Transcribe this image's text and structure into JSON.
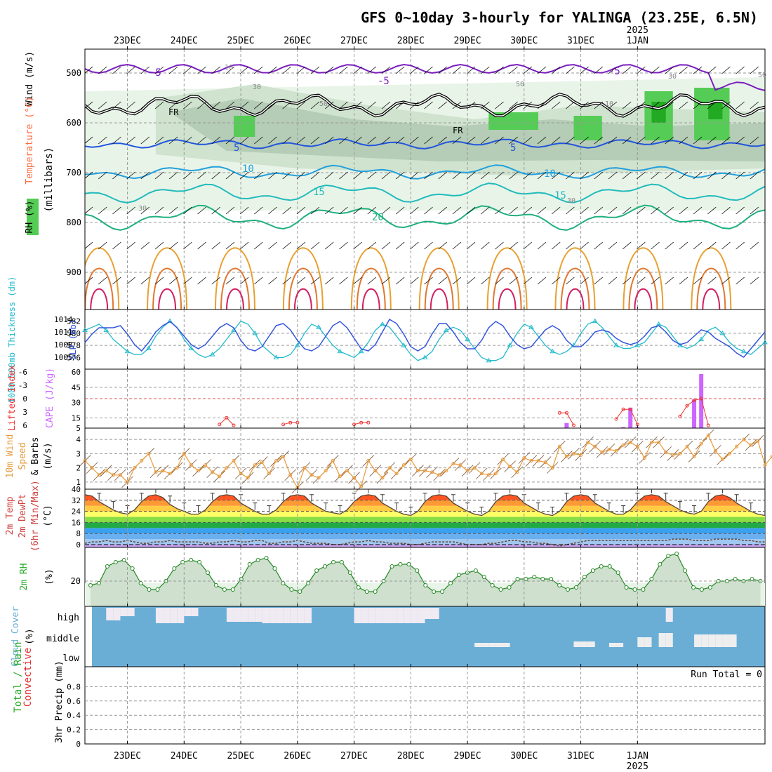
{
  "title": "GFS 0~10day 3-hourly for YALINGA (23.25E, 6.5N)",
  "dates": [
    "23DEC",
    "24DEC",
    "25DEC",
    "26DEC",
    "27DEC",
    "28DEC",
    "29DEC",
    "30DEC",
    "31DEC",
    "1JAN"
  ],
  "year_label": "2025",
  "colors": {
    "wind_barb": "#000000",
    "tmp_label": "#ff6a3c",
    "wind_label": "#000000",
    "rh_label": "#22aa22",
    "thick": "#22bbcc",
    "slp": "#3355dd",
    "cape": "#cc66ff",
    "lifted": "#ee3333",
    "wind10": "#e89a3c",
    "cloud": "#6aaed6",
    "temp_label": "#d04040"
  },
  "panels": {
    "upper": {
      "ylabel": "(millibars)",
      "side_labels": [
        "Wind (m/s)",
        "Temperature (°C)",
        "RH (%)"
      ],
      "y_ticks": [
        500,
        600,
        700,
        800,
        900
      ],
      "contour_labels": {
        "rh": [
          "10",
          "30",
          "50",
          "50",
          "50",
          "30",
          "30",
          "10",
          "30"
        ],
        "temp": [
          "-5",
          "-5",
          "-5",
          "5",
          "5",
          "10",
          "10",
          "15",
          "15",
          "20"
        ],
        "freezing": [
          "FR",
          "FR"
        ]
      }
    },
    "thickness_slp": {
      "left_label": "1000-500mb Thickness (dm)",
      "right_label": "SLP (mb)",
      "left_ticks": [
        "582",
        "580",
        "578",
        "576"
      ],
      "right_ticks": [
        "1014",
        "1011",
        "1008",
        "1005"
      ]
    },
    "cape_li": {
      "left_label": "Lifted Index",
      "right_label": "CAPE (J/kg)",
      "left_ticks": [
        "-6",
        "-3",
        "0",
        "3",
        "6"
      ],
      "right_ticks": [
        "60",
        "45",
        "30",
        "15",
        "5"
      ]
    },
    "wind10": {
      "labels": [
        "10m Wind",
        "Speed",
        "& Barbs",
        "(m/s)"
      ],
      "y_ticks": [
        "4",
        "3",
        "2",
        "1"
      ]
    },
    "temp2m": {
      "labels": [
        "2m Temp",
        "2m DewPt",
        "(6hr Min/Max)",
        "(°C)"
      ],
      "y_ticks": [
        "40",
        "32",
        "24",
        "16",
        "8",
        "0"
      ]
    },
    "rh2m": {
      "labels": [
        "2m RH",
        "(%)"
      ],
      "y_ticks": [
        "20"
      ]
    },
    "cloud": {
      "labels": [
        "Cloud Cover",
        "(%)"
      ],
      "levels": [
        "high",
        "middle",
        "low"
      ]
    },
    "precip": {
      "labels": [
        "Total / Rain",
        "Convective",
        "3hr Precip (mm)"
      ],
      "y_ticks": [
        "0.8",
        "0.6",
        "0.4",
        "0.2",
        "0"
      ],
      "run_total": "Run Total = 0"
    }
  },
  "chart_data": [
    {
      "type": "line",
      "title": "1000-500mb Thickness (dm) / SLP (mb)",
      "x_unit": "forecast step (3-hourly)",
      "series": [
        {
          "name": "1000-500mb Thickness (dm)",
          "axis": "left",
          "ylim": [
            575,
            583
          ],
          "values": [
            580.5,
            581,
            581.5,
            580.5,
            579,
            578,
            577,
            576.5,
            576.5,
            577.5,
            579.5,
            581,
            582,
            581,
            579,
            577.5,
            576.5,
            576,
            576.5,
            577.5,
            579,
            580.5,
            582,
            581.5,
            580,
            578,
            577,
            576,
            576,
            576.5,
            578,
            580,
            581.5,
            581,
            579.5,
            578,
            577,
            576.5,
            576,
            577,
            578.5,
            580.5,
            581.5,
            581,
            579.5,
            578,
            576.5,
            575.5,
            576,
            577,
            579,
            580.5,
            581,
            580.5,
            579,
            577.5,
            576,
            575.5,
            575.5,
            576,
            578,
            580,
            581.5,
            581,
            579.5,
            578,
            577,
            576.5,
            577,
            578,
            580,
            581.5,
            582,
            581,
            579.5,
            578,
            577.5,
            577.5,
            578,
            578.5,
            580,
            581.5,
            581,
            579.5,
            578,
            577.5,
            578,
            579,
            580.5,
            581,
            580,
            578.5,
            577.5,
            577,
            576.5,
            577.5,
            578.5
          ]
        },
        {
          "name": "SLP (mb)",
          "axis": "right",
          "ylim": [
            1003.5,
            1015
          ],
          "values": [
            1008.5,
            1010.5,
            1012,
            1012,
            1012,
            1012.5,
            1010.5,
            1008,
            1006.5,
            1008.5,
            1011,
            1012.5,
            1013.5,
            1012,
            1010,
            1008,
            1007,
            1008,
            1010,
            1012,
            1013,
            1012,
            1009,
            1007,
            1006.5,
            1007.5,
            1010,
            1012.5,
            1013,
            1011.5,
            1009,
            1007,
            1006.5,
            1007.5,
            1010,
            1012.5,
            1013.5,
            1012,
            1009.5,
            1007,
            1006.5,
            1008,
            1011,
            1014,
            1013,
            1010.5,
            1007.5,
            1006.5,
            1007.5,
            1010.5,
            1013,
            1013,
            1011,
            1008.5,
            1007,
            1007,
            1009,
            1012,
            1013.5,
            1012.5,
            1010,
            1008,
            1007,
            1007.5,
            1009.5,
            1011.5,
            1012.5,
            1011.5,
            1009,
            1007.5,
            1007.5,
            1009,
            1011,
            1011.5,
            1011,
            1009.5,
            1008.5,
            1008,
            1008.5,
            1010,
            1012,
            1012.5,
            1011,
            1009,
            1008,
            1008.5,
            1010,
            1011.5,
            1011,
            1009.5,
            1008.5,
            1007.5,
            1006,
            1005,
            1007,
            1009,
            1011
          ]
        }
      ]
    },
    {
      "type": "bar",
      "title": "CAPE (J/kg) / Lifted Index",
      "x_unit": "forecast step (3-hourly)",
      "ylim": [
        5,
        60
      ],
      "bars": [
        {
          "x": 68,
          "value": 10
        },
        {
          "x": 76,
          "value": 6
        },
        {
          "x": 77,
          "value": 25
        },
        {
          "x": 78,
          "value": 6
        },
        {
          "x": 86,
          "value": 33
        },
        {
          "x": 87,
          "value": 58
        }
      ],
      "lifted_index_segments": [
        [
          [
            19,
            5.8
          ],
          [
            20,
            4.3
          ],
          [
            21,
            6
          ]
        ],
        [
          [
            28,
            5.8
          ],
          [
            29,
            5.4
          ],
          [
            30,
            5.4
          ]
        ],
        [
          [
            38,
            5.8
          ],
          [
            39,
            5.4
          ],
          [
            40,
            5.4
          ]
        ],
        [
          [
            67,
            3.2
          ],
          [
            68,
            3.2
          ],
          [
            69,
            6
          ]
        ],
        [
          [
            75,
            4.6
          ],
          [
            76,
            2.4
          ],
          [
            77,
            2.4
          ],
          [
            78,
            5.8
          ]
        ],
        [
          [
            84,
            4
          ],
          [
            85,
            1.6
          ],
          [
            86,
            0.4
          ],
          [
            87,
            0
          ],
          [
            88,
            6
          ]
        ]
      ]
    },
    {
      "type": "line",
      "title": "10m Wind Speed (m/s)",
      "x_unit": "forecast step (3-hourly)",
      "ylim": [
        0.5,
        4.8
      ],
      "values": [
        2.5,
        2,
        1.5,
        1.8,
        1.5,
        1.5,
        1,
        2,
        2.5,
        3,
        1.7,
        1.8,
        1.6,
        2,
        3,
        2.2,
        1.8,
        2.2,
        1.7,
        1.4,
        2,
        2.5,
        1.6,
        1.3,
        2.2,
        2.4,
        1.6,
        2.5,
        2.8,
        1.5,
        0.6,
        2,
        1.5,
        1.3,
        1.8,
        2.5,
        1.4,
        1.8,
        1.3,
        0.7,
        2.5,
        1.8,
        1.3,
        2,
        1.6,
        2.2,
        2.6,
        1.8,
        1.8,
        1.7,
        1.5,
        1.8,
        2.3,
        2.2,
        1.8,
        2,
        1.6,
        1.5,
        1.6,
        2.6,
        2.1,
        1.7,
        2.7,
        2.5,
        2.5,
        2.4,
        2,
        3.5,
        2.8,
        3,
        2.9,
        3.8,
        3.5,
        3.1,
        3.3,
        3.2,
        3.6,
        3.8,
        3.5,
        2.7,
        3.8,
        3.8,
        3.1,
        2.9,
        3,
        3.5,
        2.8,
        3.7,
        4.3,
        3.2,
        2.6,
        3,
        3.5,
        4,
        3.6,
        3.9,
        2.2,
        2.8,
        3.2
      ]
    },
    {
      "type": "area",
      "title": "2m Temp / 2m DewPt (°C)",
      "x_unit": "forecast step (3-hourly)",
      "ylim": [
        -2,
        40
      ],
      "series": [
        {
          "name": "2m Temp",
          "values": [
            36,
            35,
            31,
            28,
            25,
            23,
            22,
            25,
            31,
            35,
            36,
            34,
            29,
            26,
            24,
            22,
            22,
            25,
            31,
            35,
            36,
            35,
            30,
            27,
            24,
            22,
            22,
            25,
            31,
            35,
            36,
            35,
            30,
            27,
            24,
            23,
            22,
            25,
            31,
            35,
            36,
            35,
            30,
            27,
            24,
            22,
            21,
            24,
            31,
            35,
            36,
            35,
            30,
            27,
            24,
            22,
            21,
            24,
            31,
            35,
            36,
            35,
            30,
            27,
            24,
            22,
            21,
            24,
            31,
            35,
            36,
            35,
            30,
            27,
            24,
            22,
            22,
            25,
            31,
            35,
            36,
            35,
            31,
            28,
            25,
            23,
            22,
            24,
            31,
            35,
            36,
            34,
            30,
            27,
            24,
            22,
            21,
            23
          ]
        },
        {
          "name": "2m DewPt",
          "values": [
            1,
            2,
            2,
            3,
            2,
            2,
            3,
            2,
            1,
            1,
            2,
            2,
            3,
            2,
            2,
            2,
            2,
            1,
            1,
            2,
            2,
            3,
            2,
            2,
            3,
            3,
            1,
            1,
            2,
            2,
            3,
            2,
            1,
            1,
            1,
            0,
            0,
            1,
            2,
            2,
            3,
            2,
            2,
            1,
            1,
            1,
            0,
            0,
            1,
            2,
            2,
            2,
            2,
            1,
            0,
            0,
            0,
            1,
            1,
            2,
            3,
            3,
            2,
            2,
            1,
            1,
            0,
            -1,
            0,
            1,
            2,
            3,
            3,
            3,
            3,
            3,
            3,
            3,
            3,
            3,
            3,
            3,
            3,
            4,
            4,
            4,
            3,
            3,
            3,
            4,
            4,
            4,
            4,
            3,
            3,
            2,
            2,
            2
          ]
        }
      ]
    },
    {
      "type": "area",
      "title": "2m RH (%)",
      "x_unit": "forecast step (3-hourly)",
      "ylim": [
        8,
        36
      ],
      "values": [
        18,
        19,
        27,
        29,
        30,
        26,
        19,
        16,
        16,
        20,
        26,
        29,
        30,
        29,
        24,
        18,
        16,
        16,
        21,
        28,
        30,
        31,
        26,
        19,
        16,
        15,
        19,
        25,
        27,
        29,
        29,
        24,
        17,
        15,
        15,
        20,
        27,
        28,
        28,
        25,
        18,
        15,
        15,
        19,
        23,
        24,
        25,
        22,
        18,
        16,
        17,
        21,
        21,
        22,
        21,
        21,
        18,
        16,
        17,
        22,
        25,
        27,
        27,
        24,
        17,
        16,
        16,
        21,
        28,
        32,
        33,
        25,
        17,
        16,
        17,
        20,
        20,
        21,
        20,
        21,
        20
      ]
    },
    {
      "type": "bar",
      "title": "Cloud Cover (%)",
      "x_unit": "forecast step (3-hourly)",
      "levels": [
        "high",
        "middle",
        "low"
      ]
    },
    {
      "type": "bar",
      "title": "3hr Precip (mm)",
      "ylim": [
        0,
        1
      ],
      "values": [],
      "annotation": "Run Total = 0"
    }
  ]
}
